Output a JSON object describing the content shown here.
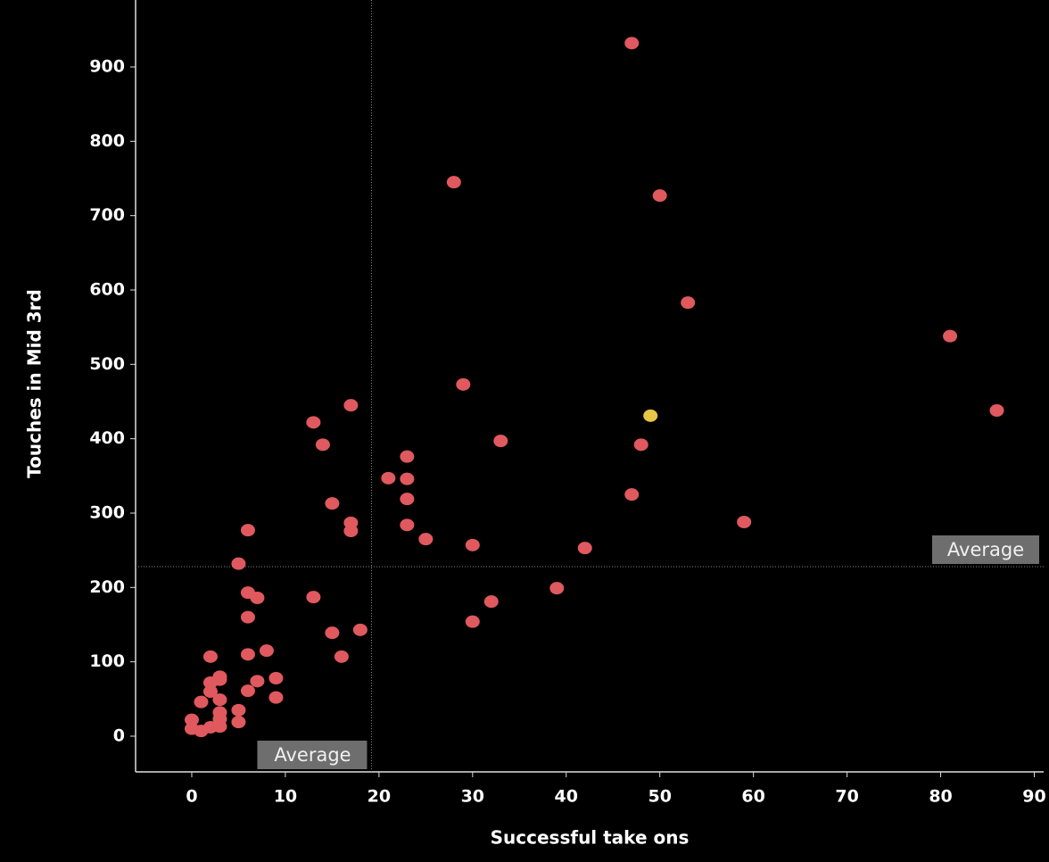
{
  "chart_data": {
    "type": "scatter",
    "x_label": "Successful take ons",
    "y_label": "Touches in Mid 3rd",
    "xlim": [
      -6,
      91
    ],
    "ylim": [
      -48,
      990
    ],
    "xticks": [
      0,
      10,
      20,
      30,
      40,
      50,
      60,
      70,
      80,
      90
    ],
    "yticks": [
      0,
      100,
      200,
      300,
      400,
      500,
      600,
      700,
      800,
      900
    ],
    "average_x": 19.2,
    "average_y": 228,
    "annotations": [
      "Average",
      "Average"
    ],
    "series": [
      {
        "color": "#e0595e",
        "x": [
          47,
          28,
          50,
          53,
          81,
          86,
          29,
          33,
          48,
          17,
          13,
          14,
          23,
          21,
          23,
          23,
          47,
          15,
          17,
          17,
          23,
          25,
          30,
          42,
          59,
          6,
          5,
          6,
          7,
          13,
          39,
          32,
          30,
          6,
          15,
          18,
          16,
          8,
          6,
          2,
          7,
          9,
          6,
          2,
          3,
          3,
          2,
          1,
          3,
          9,
          5,
          3,
          5,
          3,
          3,
          0,
          2,
          0,
          1
        ],
        "y": [
          932,
          745,
          727,
          583,
          538,
          438,
          473,
          397,
          392,
          445,
          422,
          392,
          376,
          347,
          346,
          319,
          325,
          313,
          287,
          276,
          284,
          265,
          257,
          253,
          288,
          277,
          232,
          193,
          186,
          187,
          199,
          181,
          154,
          160,
          139,
          143,
          107,
          115,
          110,
          107,
          74,
          78,
          61,
          72,
          80,
          76,
          60,
          46,
          49,
          52,
          35,
          32,
          19,
          23,
          13,
          22,
          12,
          10,
          7
        ]
      },
      {
        "color": "#e8c547",
        "x": [
          49
        ],
        "y": [
          431
        ]
      }
    ]
  }
}
